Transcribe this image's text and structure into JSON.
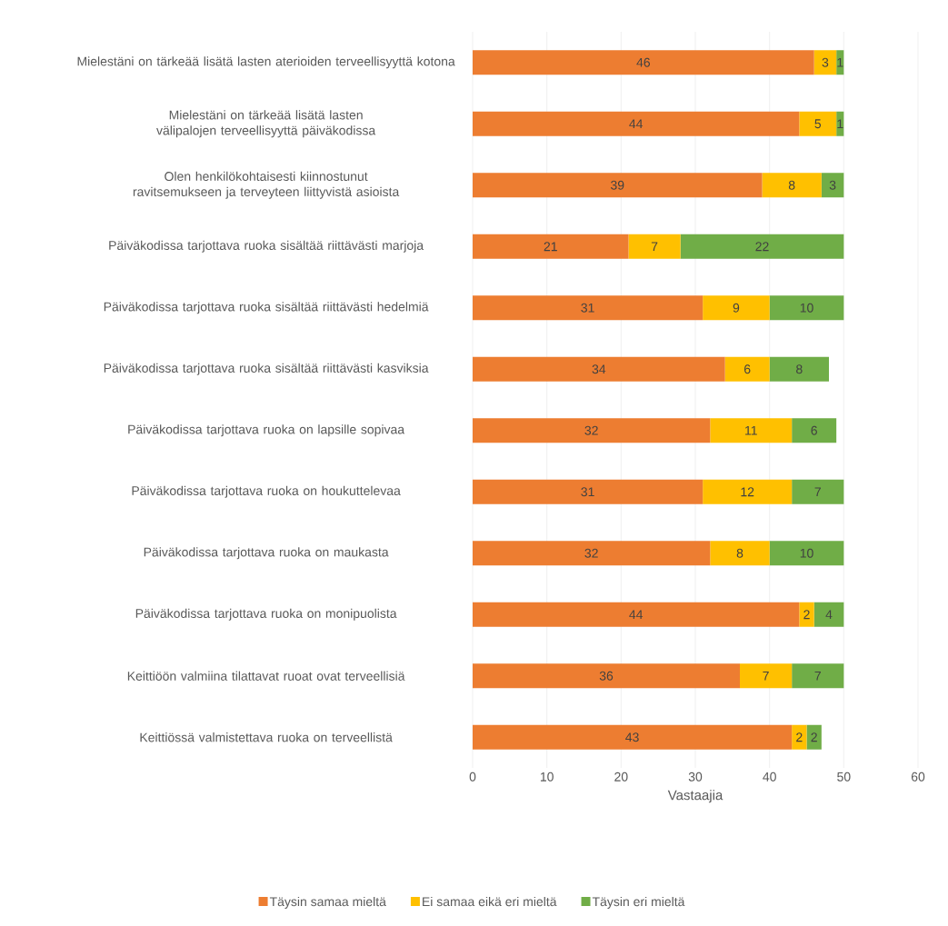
{
  "chart_data": {
    "type": "bar",
    "orientation": "horizontal",
    "stacked": true,
    "categories": [
      "Mielestäni on tärkeää lisätä lasten aterioiden terveellisyyttä kotona",
      "Mielestäni on tärkeää lisätä lasten välipalojen terveellisyyttä päiväkodissa",
      "Olen henkilökohtaisesti kiinnostunut ravitsemukseen ja terveyteen liittyvistä asioista",
      "Päiväkodissa tarjottava ruoka sisältää riittävästi marjoja",
      "Päiväkodissa tarjottava ruoka sisältää riittävästi hedelmiä",
      "Päiväkodissa tarjottava ruoka sisältää riittävästi kasviksia",
      "Päiväkodissa tarjottava ruoka on lapsille sopivaa",
      "Päiväkodissa tarjottava ruoka on houkuttelevaa",
      "Päiväkodissa tarjottava ruoka on maukasta",
      "Päiväkodissa tarjottava ruoka on monipuolista",
      "Keittiöön valmiina tilattavat ruoat ovat terveellisiä",
      "Keittiössä valmistettava ruoka on terveellistä"
    ],
    "series": [
      {
        "name": "Täysin samaa mieltä",
        "color": "#ed7d31",
        "values": [
          46,
          44,
          39,
          21,
          31,
          34,
          32,
          31,
          32,
          44,
          36,
          43
        ]
      },
      {
        "name": "Ei samaa eikä eri mieltä",
        "color": "#ffc000",
        "values": [
          3,
          5,
          8,
          7,
          9,
          6,
          11,
          12,
          8,
          2,
          7,
          2
        ]
      },
      {
        "name": "Täysin eri mieltä",
        "color": "#70ad47",
        "values": [
          1,
          1,
          3,
          22,
          10,
          8,
          6,
          7,
          10,
          4,
          7,
          2
        ]
      }
    ],
    "xlabel": "Vastaajia",
    "xlim": [
      0,
      60
    ],
    "xticks": [
      0,
      10,
      20,
      30,
      40,
      50,
      60
    ],
    "grid": "x",
    "legend": "bottom",
    "data_labels": true
  }
}
